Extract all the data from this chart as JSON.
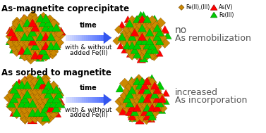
{
  "title_top": "As-magnetite coprecipitate",
  "title_bottom": "As sorbed to magnetite",
  "arrow_label_line1": "time",
  "arrow_label_line2": "with & without",
  "arrow_label_line3": "added Fe(II)",
  "result_top_line1": "no",
  "result_top_line2": "As remobilization",
  "result_bottom_line1": "increased",
  "result_bottom_line2": "As incorporation",
  "legend_fe_label": "Fe(II),(III)",
  "legend_as5_label": "As(V)",
  "legend_fe3_label": "Fe(III)",
  "color_fe": "#CC8800",
  "color_as5": "#FF0000",
  "color_fe3": "#00CC00",
  "color_fe_edge": "#7a4a00",
  "color_as5_edge": "#990000",
  "color_fe3_edge": "#007700",
  "bg_color": "#FFFFFF",
  "title_fontsize": 8.5,
  "arrow_label_fontsize": 7,
  "result_fontsize": 9,
  "legend_fontsize": 5.5
}
